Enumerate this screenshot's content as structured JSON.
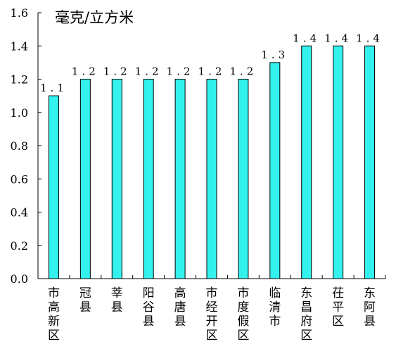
{
  "chart_data": {
    "type": "bar",
    "unit_label": "毫克/立方米",
    "categories": [
      "市高新区",
      "冠县",
      "莘县",
      "阳谷县",
      "高唐县",
      "市经开区",
      "市度假区",
      "临清市",
      "东昌府区",
      "茌平区",
      "东阿县"
    ],
    "values": [
      1.1,
      1.2,
      1.2,
      1.2,
      1.2,
      1.2,
      1.2,
      1.3,
      1.4,
      1.4,
      1.4
    ],
    "value_labels": [
      "1.1",
      "1.2",
      "1.2",
      "1.2",
      "1.2",
      "1.2",
      "1.2",
      "1.3",
      "1.4",
      "1.4",
      "1.4"
    ],
    "y_ticks": [
      "0.0",
      "0.2",
      "0.4",
      "0.6",
      "0.8",
      "1.0",
      "1.2",
      "1.4",
      "1.6"
    ],
    "ylim": [
      0,
      1.6
    ],
    "grid": false,
    "legend": "none",
    "colors": {
      "bar_fill": "#33f2ee",
      "bar_stroke": "#000000",
      "axis": "#000000"
    }
  }
}
